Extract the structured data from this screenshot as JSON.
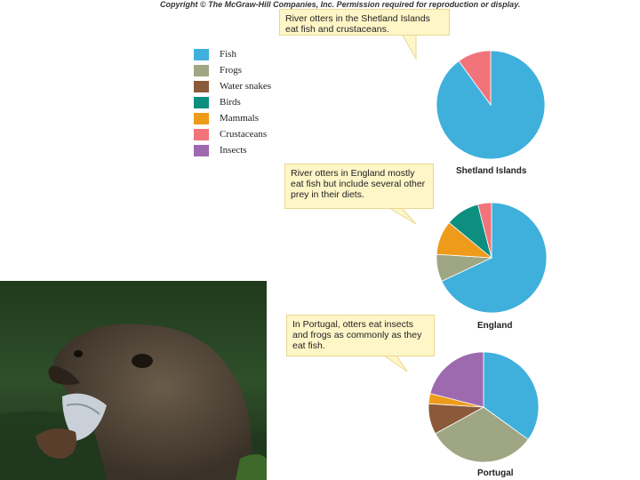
{
  "copyright": "Copyright © The McGraw-Hill Companies, Inc. Permission required for reproduction or display.",
  "legend": [
    {
      "label": "Fish",
      "color": "#3fb0dc"
    },
    {
      "label": "Frogs",
      "color": "#9fa683"
    },
    {
      "label": "Water snakes",
      "color": "#8a5a3a"
    },
    {
      "label": "Birds",
      "color": "#0d8f80"
    },
    {
      "label": "Mammals",
      "color": "#ee9a1a"
    },
    {
      "label": "Crustaceans",
      "color": "#f0747a"
    },
    {
      "label": "Insects",
      "color": "#9d6ab0"
    }
  ],
  "callouts": {
    "shetland": "River otters in the Shetland Islands eat fish and crustaceans.",
    "england": "River otters in England mostly eat fish but include several other prey in their diets.",
    "portugal": "In Portugal, otters eat insects and frogs as commonly as they eat fish."
  },
  "chart_data": [
    {
      "type": "pie",
      "title": "Shetland Islands",
      "slices": [
        {
          "label": "Fish",
          "value": 90
        },
        {
          "label": "Crustaceans",
          "value": 10
        }
      ]
    },
    {
      "type": "pie",
      "title": "England",
      "slices": [
        {
          "label": "Fish",
          "value": 68
        },
        {
          "label": "Frogs",
          "value": 8
        },
        {
          "label": "Mammals",
          "value": 10
        },
        {
          "label": "Birds",
          "value": 10
        },
        {
          "label": "Crustaceans",
          "value": 4
        }
      ]
    },
    {
      "type": "pie",
      "title": "Portugal",
      "slices": [
        {
          "label": "Fish",
          "value": 35
        },
        {
          "label": "Frogs",
          "value": 32
        },
        {
          "label": "Water snakes",
          "value": 9
        },
        {
          "label": "Mammals",
          "value": 3
        },
        {
          "label": "Insects",
          "value": 21
        }
      ]
    }
  ]
}
